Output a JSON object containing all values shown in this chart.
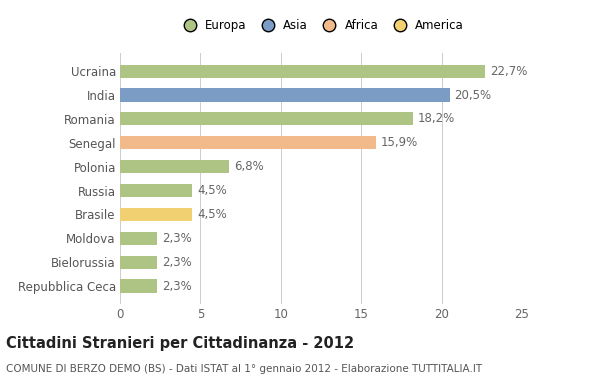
{
  "categories": [
    "Repubblica Ceca",
    "Bielorussia",
    "Moldova",
    "Brasile",
    "Russia",
    "Polonia",
    "Senegal",
    "Romania",
    "India",
    "Ucraina"
  ],
  "values": [
    2.3,
    2.3,
    2.3,
    4.5,
    4.5,
    6.8,
    15.9,
    18.2,
    20.5,
    22.7
  ],
  "labels": [
    "2,3%",
    "2,3%",
    "2,3%",
    "4,5%",
    "4,5%",
    "6,8%",
    "15,9%",
    "18,2%",
    "20,5%",
    "22,7%"
  ],
  "colors": [
    "#aec485",
    "#aec485",
    "#aec485",
    "#f0d070",
    "#aec485",
    "#aec485",
    "#f2b98a",
    "#aec485",
    "#7b9dc5",
    "#aec485"
  ],
  "legend_labels": [
    "Europa",
    "Asia",
    "Africa",
    "America"
  ],
  "legend_colors": [
    "#aec485",
    "#7b9dc5",
    "#f2b98a",
    "#f0d070"
  ],
  "title": "Cittadini Stranieri per Cittadinanza - 2012",
  "subtitle": "COMUNE DI BERZO DEMO (BS) - Dati ISTAT al 1° gennaio 2012 - Elaborazione TUTTITALIA.IT",
  "xlim": [
    0,
    25
  ],
  "xticks": [
    0,
    5,
    10,
    15,
    20,
    25
  ],
  "background_color": "#ffffff",
  "grid_color": "#cccccc",
  "bar_height": 0.55,
  "label_fontsize": 8.5,
  "tick_fontsize": 8.5,
  "title_fontsize": 10.5,
  "subtitle_fontsize": 7.5
}
